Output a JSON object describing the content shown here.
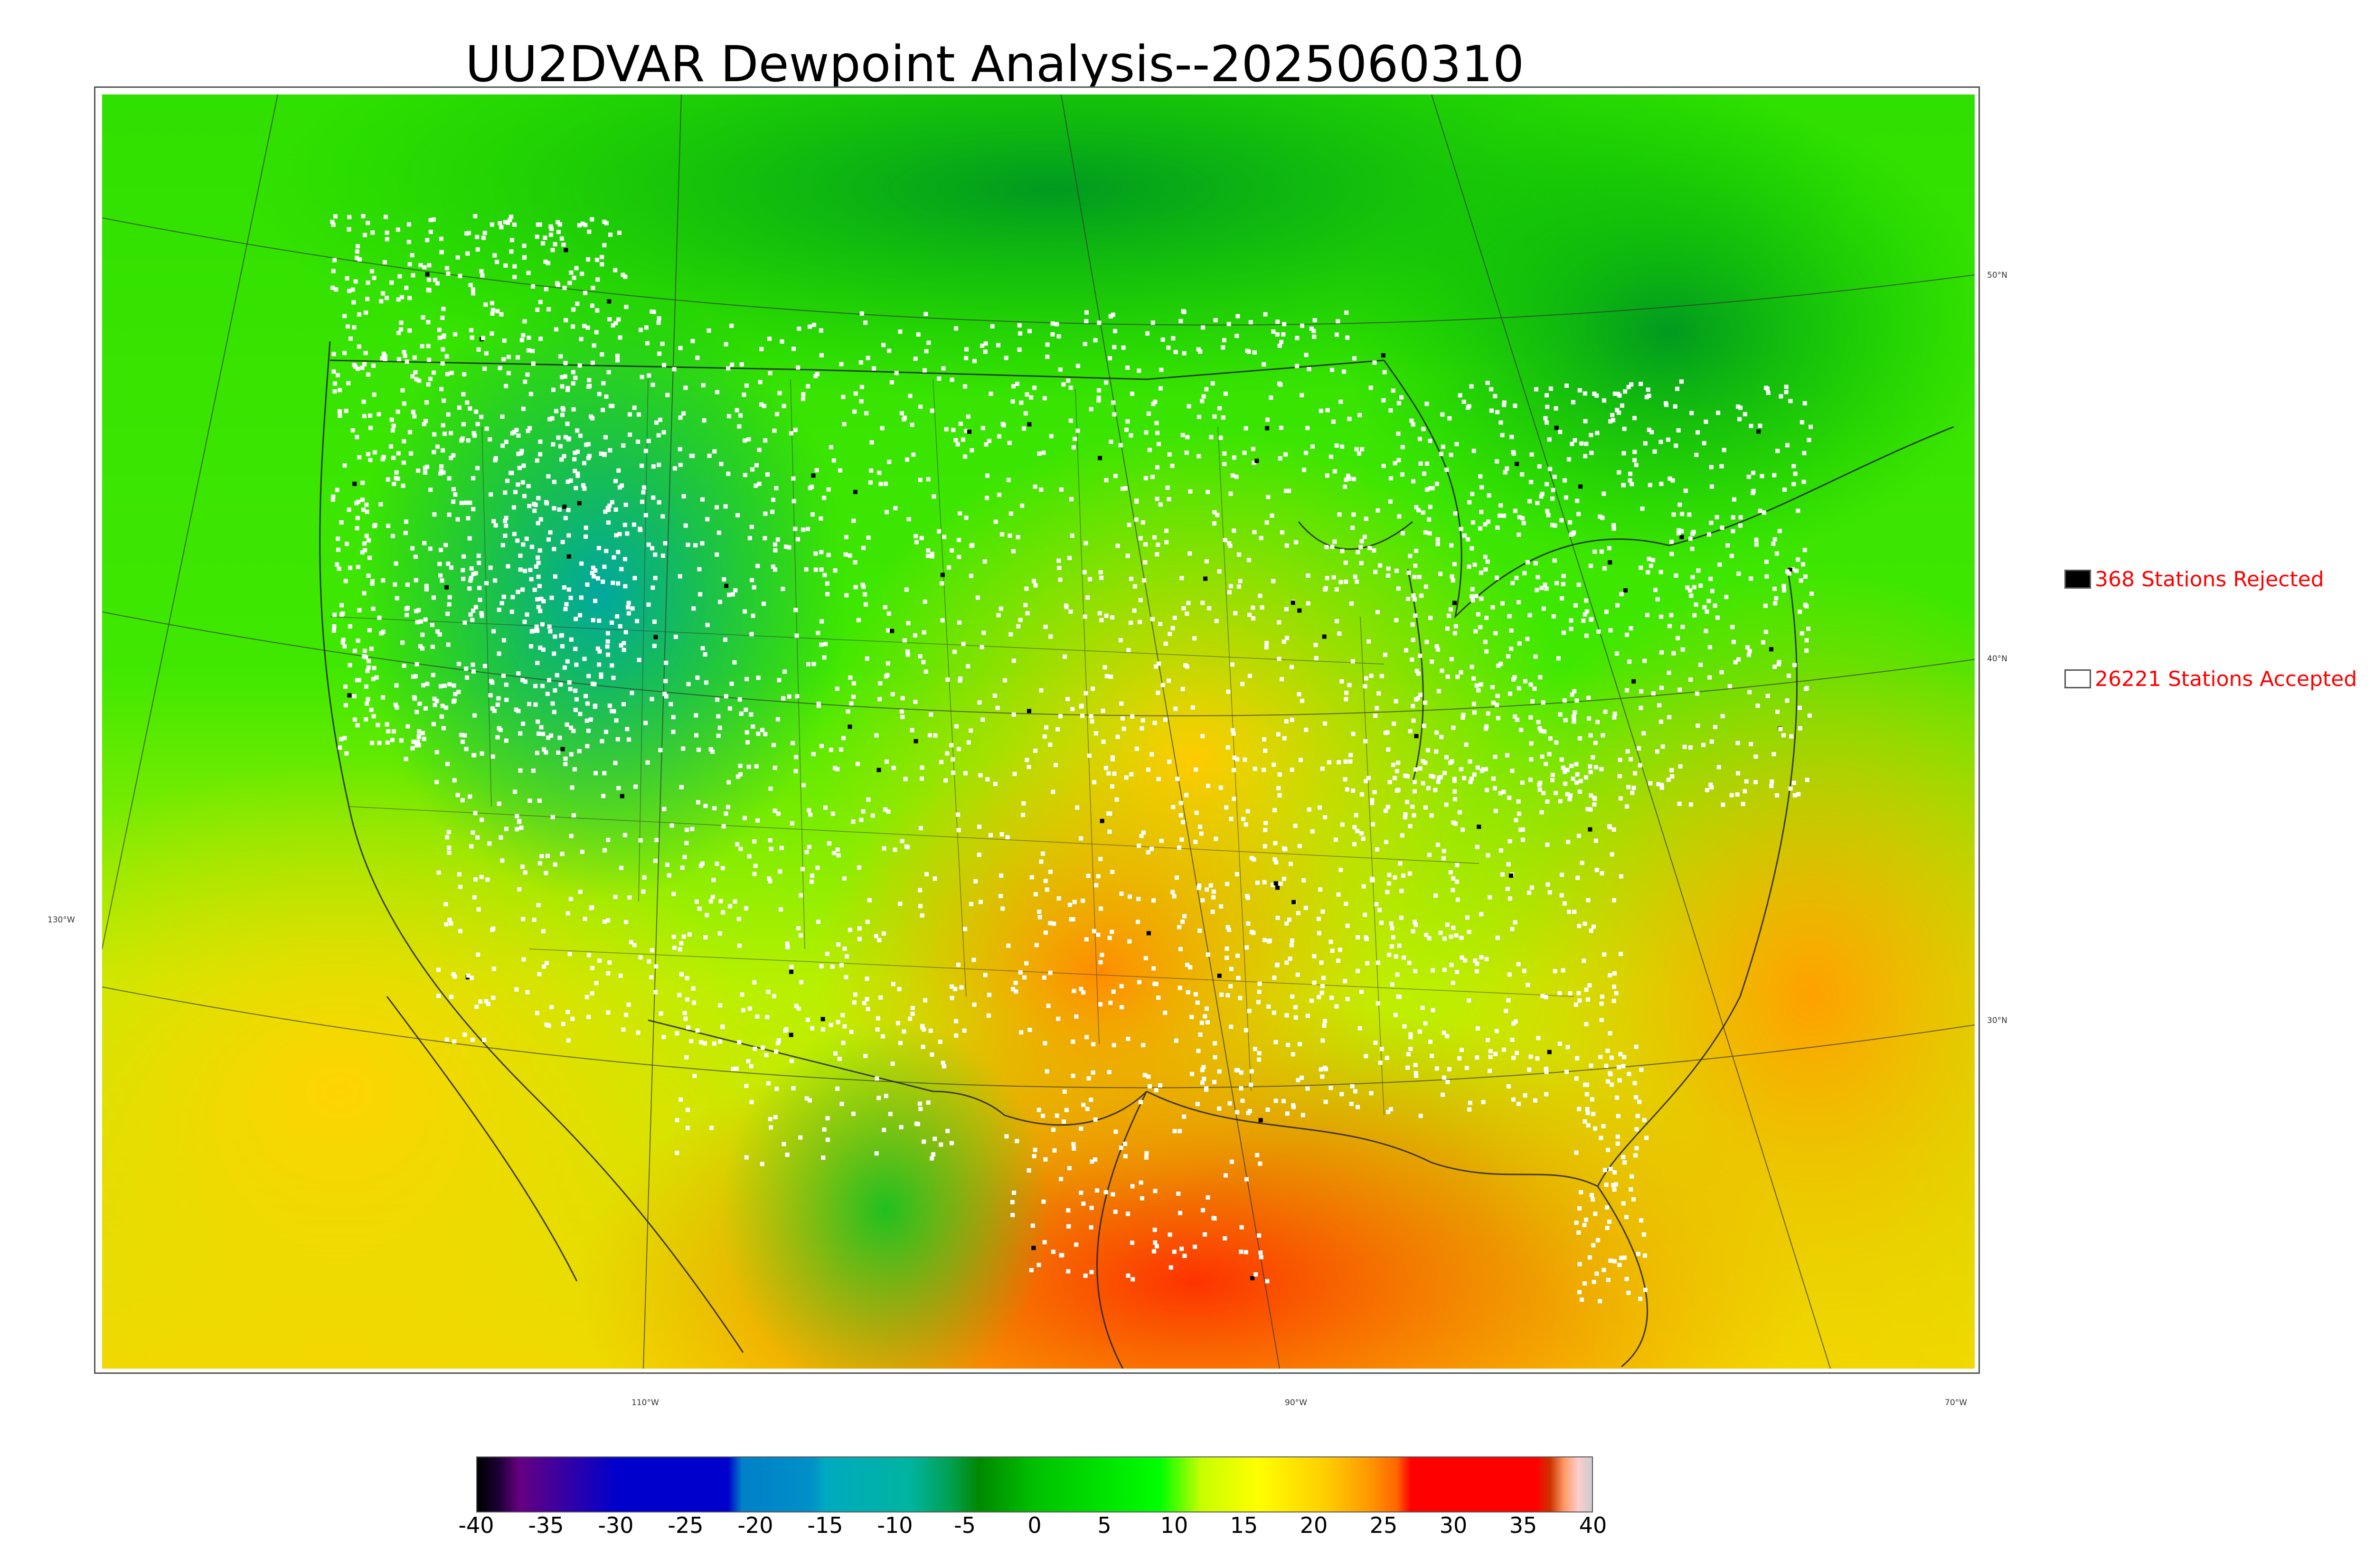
{
  "title": "UU2DVAR Dewpoint Analysis--2025060310",
  "map": {
    "lat_labels": [
      "50°N",
      "40°N",
      "30°N"
    ],
    "lon_labels": [
      "130°W",
      "110°W",
      "90°W",
      "70°W"
    ],
    "marker_colors": {
      "accepted": "#ffffff",
      "rejected": "#000000"
    }
  },
  "legend": {
    "rejected": {
      "label": "368 Stations Rejected",
      "count": 368,
      "swatch_color": "#000000"
    },
    "accepted": {
      "label": "26221 Stations Accepted",
      "count": 26221,
      "swatch_color": "#ffffff"
    },
    "text_color": "#ff0000"
  },
  "colorbar": {
    "min": -40,
    "max": 40,
    "tick_labels": [
      "-40",
      "-35",
      "-30",
      "-25",
      "-20",
      "-15",
      "-10",
      "-5",
      "0",
      "5",
      "10",
      "15",
      "20",
      "25",
      "30",
      "35",
      "40"
    ],
    "color_stops": [
      {
        "value": -40,
        "color": "#000000"
      },
      {
        "value": -38.5,
        "color": "#1a0033"
      },
      {
        "value": -37,
        "color": "#660080"
      },
      {
        "value": -30,
        "color": "#0000cc"
      },
      {
        "value": -22,
        "color": "#0000cc"
      },
      {
        "value": -21,
        "color": "#0080c8"
      },
      {
        "value": -16,
        "color": "#0090c8"
      },
      {
        "value": -15,
        "color": "#00aac0"
      },
      {
        "value": -9,
        "color": "#00b4a0"
      },
      {
        "value": -6,
        "color": "#00a050"
      },
      {
        "value": -4,
        "color": "#008800"
      },
      {
        "value": 0,
        "color": "#00c000"
      },
      {
        "value": 9,
        "color": "#00ff00"
      },
      {
        "value": 12,
        "color": "#c8ff00"
      },
      {
        "value": 16,
        "color": "#ffff00"
      },
      {
        "value": 21,
        "color": "#ffcc00"
      },
      {
        "value": 24,
        "color": "#ff9900"
      },
      {
        "value": 26,
        "color": "#ff6600"
      },
      {
        "value": 27,
        "color": "#ff0000"
      },
      {
        "value": 36,
        "color": "#ff0000"
      },
      {
        "value": 37,
        "color": "#cc3300"
      },
      {
        "value": 38,
        "color": "#ff9966"
      },
      {
        "value": 39,
        "color": "#ffcccc"
      },
      {
        "value": 40,
        "color": "#cccccc"
      }
    ]
  }
}
